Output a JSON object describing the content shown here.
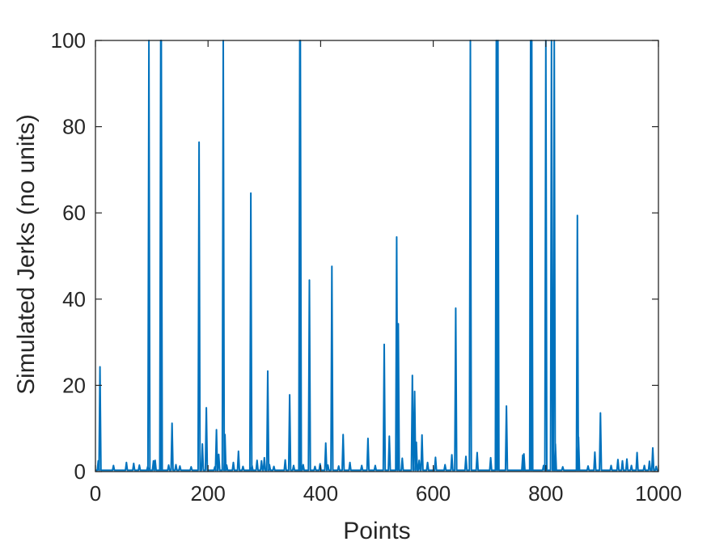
{
  "chart_data": {
    "type": "line",
    "title": "",
    "xlabel": "Points",
    "ylabel": "Simulated Jerks (no units)",
    "xlim": [
      0,
      1000
    ],
    "ylim": [
      0,
      100
    ],
    "xticks": [
      0,
      200,
      400,
      600,
      800,
      1000
    ],
    "yticks": [
      0,
      20,
      40,
      60,
      80,
      100
    ],
    "xtick_labels": [
      "0",
      "200",
      "400",
      "600",
      "800",
      "1000"
    ],
    "ytick_labels": [
      "0",
      "20",
      "40",
      "60",
      "80",
      "100"
    ],
    "grid": false,
    "series_color": "#0072bd",
    "baseline": 0.3,
    "series": [
      {
        "x": [
          5,
          8,
          32,
          55,
          68,
          78,
          93,
          95,
          103,
          106,
          116,
          117,
          130,
          136,
          143,
          150,
          170,
          184,
          190,
          197,
          212,
          215,
          219,
          227,
          230,
          233,
          245,
          254,
          262,
          276,
          278,
          287,
          295,
          300,
          306,
          309,
          317,
          337,
          345,
          352,
          363,
          364,
          369,
          380,
          390,
          399,
          409,
          413,
          420,
          432,
          440,
          452,
          473,
          484,
          497,
          513,
          522,
          535,
          538,
          545,
          563,
          567,
          570,
          575,
          580,
          590,
          604,
          621,
          633,
          640,
          658,
          666,
          678,
          702,
          712,
          715,
          730,
          759,
          761,
          773,
          775,
          796,
          800,
          810,
          815,
          817,
          830,
          856,
          858,
          875,
          887,
          897,
          916,
          928,
          936,
          944,
          952,
          962,
          975,
          984,
          990,
          996
        ],
        "y": [
          2.5,
          24.3,
          1.4,
          2.1,
          1.9,
          1.5,
          1.2,
          100,
          2.5,
          2.6,
          100,
          100,
          1.5,
          11.2,
          1.6,
          1.3,
          1.1,
          76.4,
          6.4,
          14.8,
          1.1,
          9.7,
          4,
          100,
          8.6,
          1.5,
          2.1,
          4.7,
          1.2,
          64.6,
          1.4,
          2.6,
          2.5,
          3.2,
          23.3,
          1.6,
          1.2,
          2.7,
          17.8,
          1.4,
          100,
          100,
          1.6,
          44.4,
          1.2,
          1.8,
          6.6,
          1.5,
          47.6,
          1.3,
          8.6,
          2.1,
          1.4,
          7.7,
          1.4,
          29.5,
          8.2,
          54.4,
          34.3,
          3.1,
          22.3,
          18.6,
          6.8,
          2.6,
          8.5,
          2.1,
          3.3,
          1.6,
          3.9,
          37.9,
          3.5,
          100,
          4.4,
          3.2,
          100,
          100,
          15.2,
          3.8,
          4.1,
          100,
          100,
          1.4,
          100,
          100,
          100,
          6.4,
          1.1,
          59.4,
          8,
          1.3,
          4.5,
          13.6,
          1.4,
          2.8,
          2.5,
          2.9,
          1.4,
          4.4,
          1.4,
          2.4,
          5.5,
          1.2
        ]
      }
    ]
  }
}
